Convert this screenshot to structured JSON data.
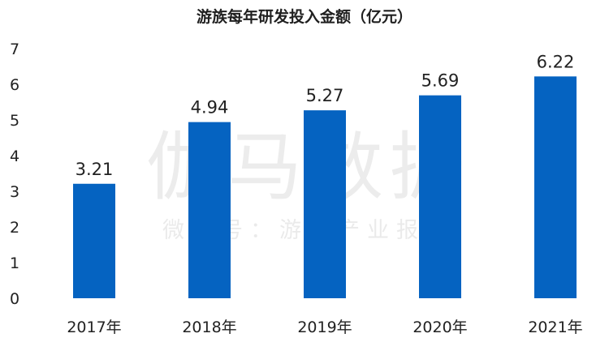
{
  "chart_data": {
    "type": "bar",
    "title": "游族每年研发投入金额（亿元）",
    "categories": [
      "2017年",
      "2018年",
      "2019年",
      "2020年",
      "2021年"
    ],
    "values": [
      3.21,
      4.94,
      5.27,
      5.69,
      6.22
    ],
    "value_labels": [
      "3.21",
      "4.94",
      "5.27",
      "5.69",
      "6.22"
    ],
    "ylim": [
      0,
      7
    ],
    "yticks": [
      "0",
      "1",
      "2",
      "3",
      "4",
      "5",
      "6",
      "7"
    ],
    "bar_color": "#0563c1",
    "grid": false,
    "legend": "none"
  },
  "watermark": {
    "main": "伽马数据",
    "sub": "微信号：游戏产业报告"
  }
}
